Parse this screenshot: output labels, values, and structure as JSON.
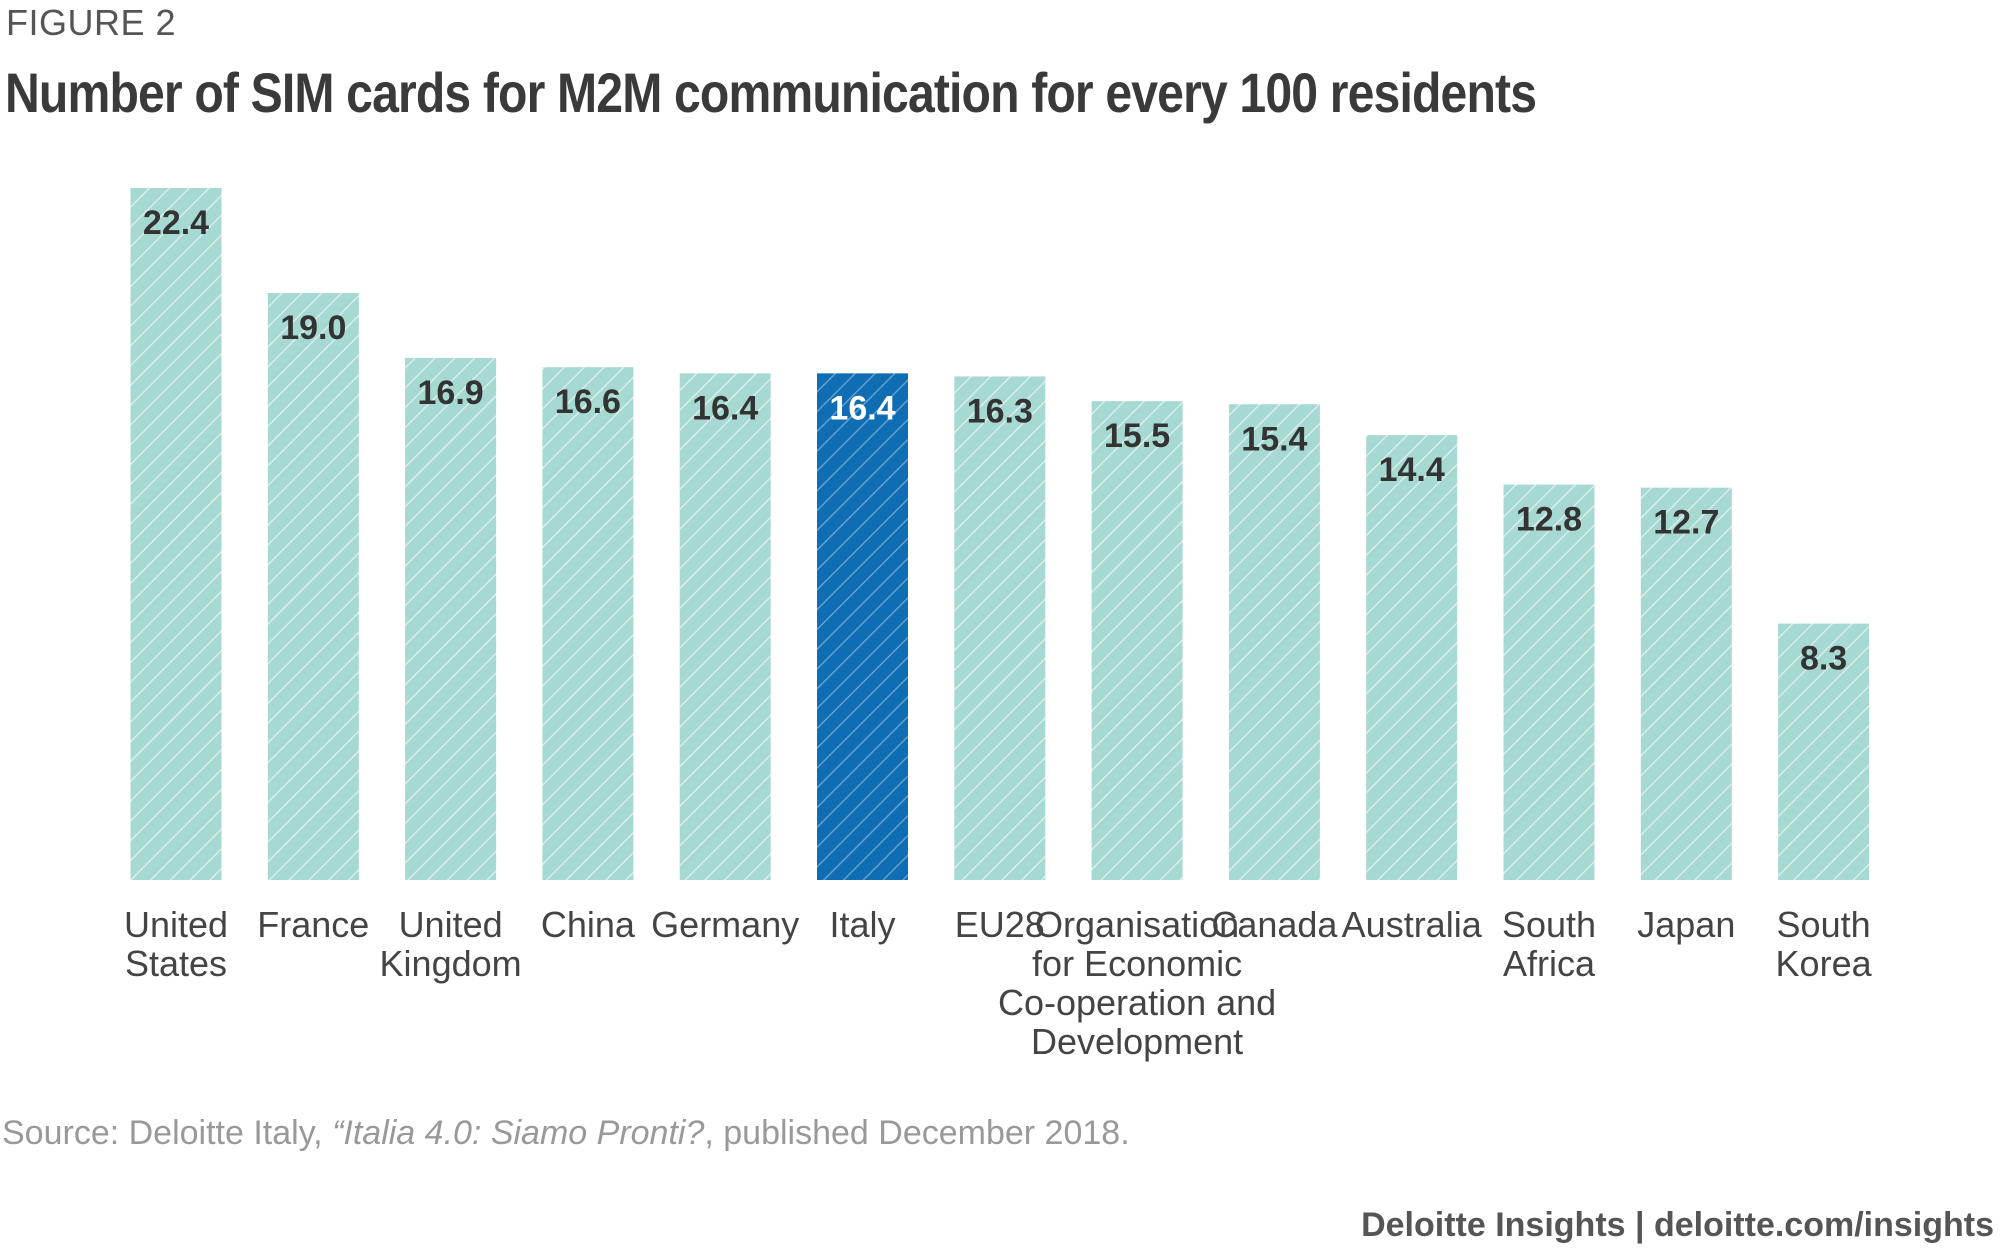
{
  "figure_label": "FIGURE 2",
  "source": {
    "prefix": "Source: Deloitte Italy, ",
    "italic": "“Italia 4.0: Siamo Pronti?",
    "suffix": ", published December 2018."
  },
  "footer": "Deloitte Insights | deloitte.com/insights",
  "colors": {
    "bar": "#a6d9d1",
    "bar_highlight": "#0e6db3",
    "label": "#333333",
    "label_highlight": "#ffffff"
  },
  "chart_data": {
    "type": "bar",
    "title": "Number of SIM cards for M2M communication for every 100 residents",
    "xlabel": "",
    "ylabel": "",
    "ylim": [
      0,
      22.4
    ],
    "grid": false,
    "highlight": "Italy",
    "categories": [
      "United States",
      "France",
      "United Kingdom",
      "China",
      "Germany",
      "Italy",
      "EU28",
      "Organisation for Economic Co-operation and Development",
      "Canada",
      "Australia",
      "South Africa",
      "Japan",
      "South Korea"
    ],
    "category_lines": [
      [
        "United",
        "States"
      ],
      [
        "France"
      ],
      [
        "United",
        "Kingdom"
      ],
      [
        "China"
      ],
      [
        "Germany"
      ],
      [
        "Italy"
      ],
      [
        "EU28"
      ],
      [
        "Organisation",
        "for Economic",
        "Co-operation and",
        "Development"
      ],
      [
        "Canada"
      ],
      [
        "Australia"
      ],
      [
        "South",
        "Africa"
      ],
      [
        "Japan"
      ],
      [
        "South",
        "Korea"
      ]
    ],
    "values": [
      22.4,
      19.0,
      16.9,
      16.6,
      16.4,
      16.4,
      16.3,
      15.5,
      15.4,
      14.4,
      12.8,
      12.7,
      8.3
    ],
    "value_labels": [
      "22.4",
      "19.0",
      "16.9",
      "16.6",
      "16.4",
      "16.4",
      "16.3",
      "15.5",
      "15.4",
      "14.4",
      "12.8",
      "12.7",
      "8.3"
    ]
  }
}
